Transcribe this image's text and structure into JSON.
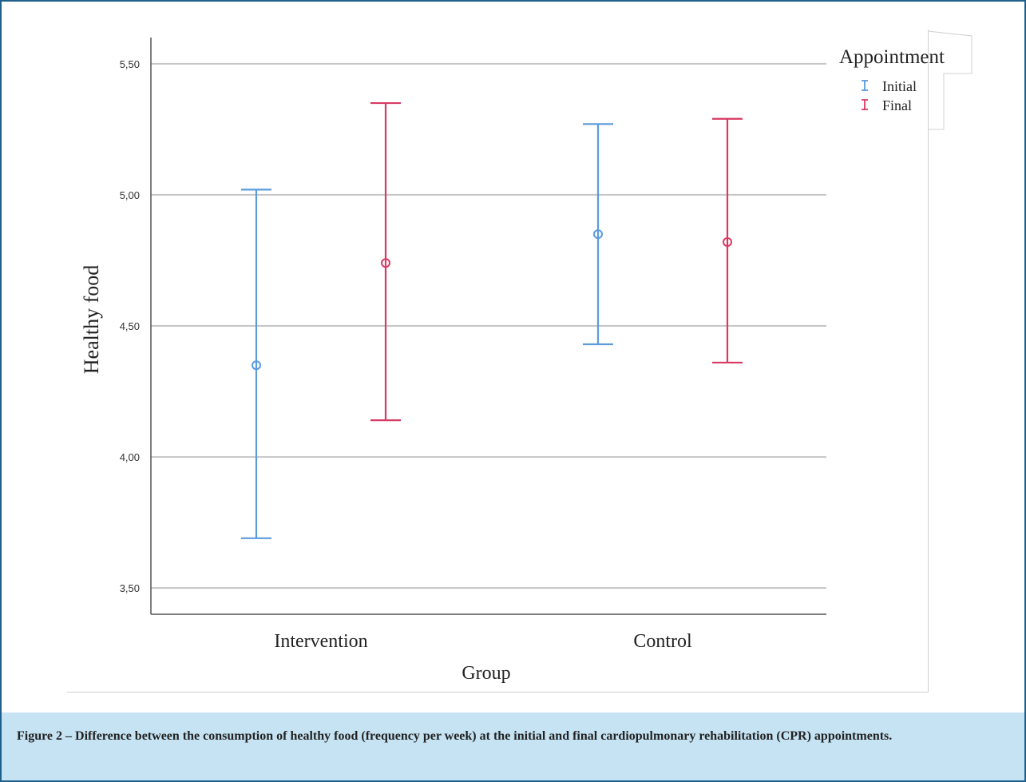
{
  "caption": "Figure 2 – Difference between the consumption of healthy food (frequency per week) at the initial and final cardiopulmonary rehabilitation (CPR) appointments.",
  "chart_data": {
    "type": "errorbar",
    "title": "",
    "xlabel": "Group",
    "ylabel": "Healthy food",
    "categories": [
      "Intervention",
      "Control"
    ],
    "ylim": [
      3.4,
      5.6
    ],
    "yticks": [
      3.5,
      4.0,
      4.5,
      5.0,
      5.5
    ],
    "ytick_labels": [
      "3,50",
      "4,00",
      "4,50",
      "5,00",
      "5,50"
    ],
    "grid": true,
    "legend": {
      "title": "Appointment",
      "position": "top-right"
    },
    "series": [
      {
        "name": "Initial",
        "color": "#5b9bdc",
        "mean": [
          4.35,
          4.85
        ],
        "lower": [
          3.69,
          4.43
        ],
        "upper": [
          5.02,
          5.27
        ]
      },
      {
        "name": "Final",
        "color": "#d83a63",
        "mean": [
          4.74,
          4.82
        ],
        "lower": [
          4.14,
          4.36
        ],
        "upper": [
          5.35,
          5.29
        ]
      }
    ]
  }
}
